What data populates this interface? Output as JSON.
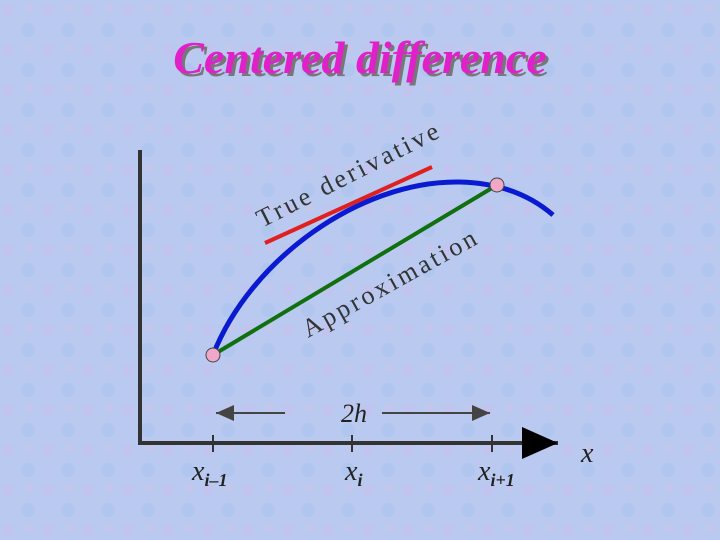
{
  "title": "Centered difference",
  "labels": {
    "true_derivative": "True derivative",
    "approximation": "Approximation",
    "step": "2h",
    "axis": "x"
  },
  "ticks": [
    {
      "base": "x",
      "sub": "i–1"
    },
    {
      "base": "x",
      "sub": "i"
    },
    {
      "base": "x",
      "sub": "i+1"
    }
  ]
}
